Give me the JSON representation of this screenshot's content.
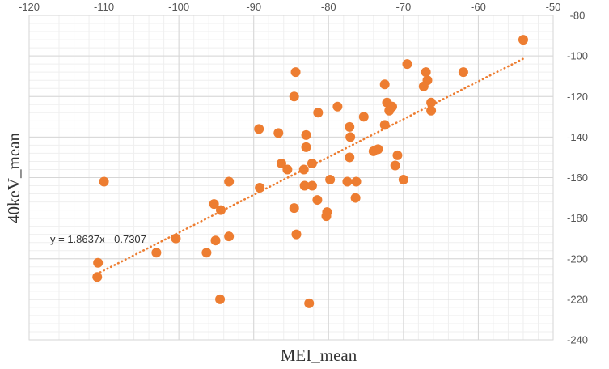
{
  "chart_data": {
    "type": "scatter",
    "xlabel": "MEI_mean",
    "ylabel": "40keV_mean",
    "xlim": [
      -120,
      -50
    ],
    "ylim": [
      -240,
      -80
    ],
    "x_ticks": [
      "-120",
      "-110",
      "-100",
      "-90",
      "-80",
      "-70",
      "-60",
      "-50"
    ],
    "y_ticks": [
      "-80",
      "-100",
      "-120",
      "-140",
      "-160",
      "-180",
      "-200",
      "-220",
      "-240"
    ],
    "x_tick_step": 10,
    "y_tick_step": 20,
    "grid": true,
    "minor_grid": true,
    "marker_color": "#ED7D31",
    "trendline": {
      "equation": "y = 1.8637x - 0.7307",
      "slope": 1.8637,
      "intercept": -0.7307,
      "x_range": [
        -111,
        -54
      ],
      "color": "#ED7D31",
      "style": "dotted"
    },
    "points": [
      [
        -54,
        -92
      ],
      [
        -62,
        -108
      ],
      [
        -69.5,
        -104
      ],
      [
        -67,
        -108
      ],
      [
        -66.8,
        -112
      ],
      [
        -67.3,
        -115
      ],
      [
        -66.3,
        -123
      ],
      [
        -66.3,
        -127
      ],
      [
        -72.5,
        -114
      ],
      [
        -72.2,
        -123
      ],
      [
        -71.5,
        -125
      ],
      [
        -71.9,
        -127
      ],
      [
        -72.5,
        -134
      ],
      [
        -75.3,
        -130
      ],
      [
        -78.8,
        -125
      ],
      [
        -77.2,
        -135
      ],
      [
        -77.1,
        -140
      ],
      [
        -77.2,
        -150
      ],
      [
        -74,
        -147
      ],
      [
        -73.4,
        -146
      ],
      [
        -70.8,
        -149
      ],
      [
        -71.1,
        -154
      ],
      [
        -70,
        -161
      ],
      [
        -76.3,
        -162
      ],
      [
        -77.5,
        -162
      ],
      [
        -76.4,
        -170
      ],
      [
        -79.8,
        -161
      ],
      [
        -80.2,
        -177
      ],
      [
        -80.3,
        -179
      ],
      [
        -81.5,
        -171
      ],
      [
        -81.4,
        -128
      ],
      [
        -83,
        -139
      ],
      [
        -83,
        -145
      ],
      [
        -82.2,
        -153
      ],
      [
        -83.3,
        -156
      ],
      [
        -82.2,
        -164
      ],
      [
        -83.2,
        -164
      ],
      [
        -84.4,
        -108
      ],
      [
        -84.6,
        -120
      ],
      [
        -86.7,
        -138
      ],
      [
        -86.3,
        -153
      ],
      [
        -85.5,
        -156
      ],
      [
        -84.6,
        -175
      ],
      [
        -84.3,
        -188
      ],
      [
        -89.3,
        -136
      ],
      [
        -89.2,
        -165
      ],
      [
        -82.6,
        -222
      ],
      [
        -93.3,
        -162
      ],
      [
        -94.4,
        -176
      ],
      [
        -95.3,
        -173
      ],
      [
        -93.3,
        -189
      ],
      [
        -95.1,
        -191
      ],
      [
        -96.3,
        -197
      ],
      [
        -94.5,
        -220
      ],
      [
        -100.4,
        -190
      ],
      [
        -103,
        -197
      ],
      [
        -110,
        -162
      ],
      [
        -110.8,
        -202
      ],
      [
        -110.9,
        -209
      ]
    ]
  }
}
